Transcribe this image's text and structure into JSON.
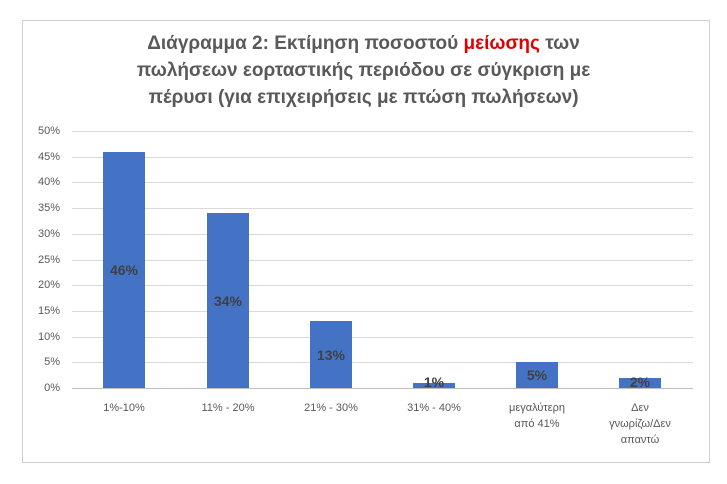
{
  "title": {
    "part1": "Διάγραμμα 2: Εκτίμηση ποσοστού ",
    "highlight": "μείωσης",
    "part2": " των",
    "line2": "πωλήσεων εορταστικής περιόδου σε σύγκριση με",
    "line3": "πέρυσι (για επιχειρήσεις με πτώση πωλήσεων)",
    "highlight_color": "#e00000"
  },
  "y_ticks": [
    "50%",
    "45%",
    "40%",
    "35%",
    "30%",
    "25%",
    "20%",
    "15%",
    "10%",
    "5%",
    "0%"
  ],
  "bars": [
    {
      "category_lines": [
        "1%-10%"
      ],
      "value": 46,
      "label": "46%"
    },
    {
      "category_lines": [
        "11% - 20%"
      ],
      "value": 34,
      "label": "34%"
    },
    {
      "category_lines": [
        "21% - 30%"
      ],
      "value": 13,
      "label": "13%"
    },
    {
      "category_lines": [
        "31% - 40%"
      ],
      "value": 1,
      "label": "1%"
    },
    {
      "category_lines": [
        "μεγαλύτερη",
        "από 41%"
      ],
      "value": 5,
      "label": "5%"
    },
    {
      "category_lines": [
        "Δεν",
        "γνωρίζω/Δεν",
        "απαντώ"
      ],
      "value": 2,
      "label": "2%"
    }
  ],
  "bar_color": "#4472c4",
  "chart_data": {
    "type": "bar",
    "title": "Διάγραμμα 2: Εκτίμηση ποσοστού μείωσης των πωλήσεων εορταστικής περιόδου σε σύγκριση με πέρυσι (για επιχειρήσεις με πτώση πωλήσεων)",
    "categories": [
      "1%-10%",
      "11% - 20%",
      "21% - 30%",
      "31% - 40%",
      "μεγαλύτερη από 41%",
      "Δεν γνωρίζω/Δεν απαντώ"
    ],
    "values": [
      46,
      34,
      13,
      1,
      5,
      2
    ],
    "data_labels": [
      "46%",
      "34%",
      "13%",
      "1%",
      "5%",
      "2%"
    ],
    "xlabel": "",
    "ylabel": "",
    "ylim": [
      0,
      50
    ],
    "y_tick_step": 5,
    "y_format": "percent",
    "grid": true,
    "legend": "none",
    "series_color": "#4472c4"
  }
}
